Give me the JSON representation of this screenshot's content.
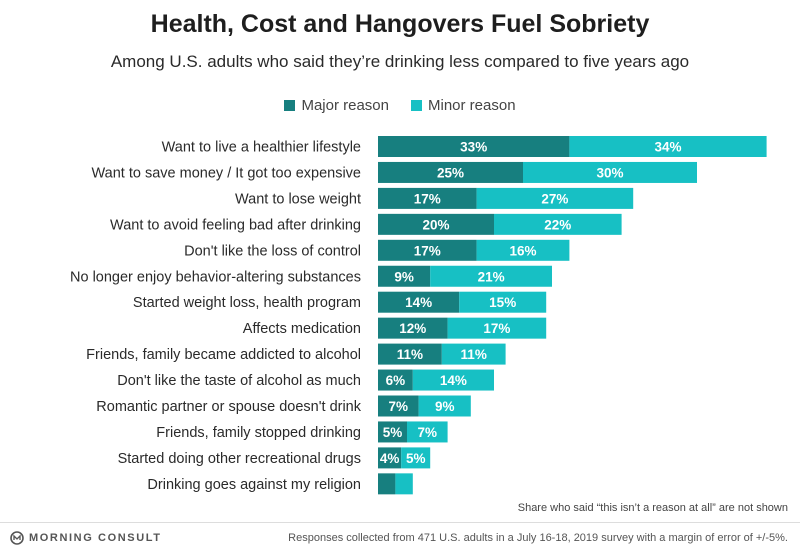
{
  "chart_data": {
    "type": "bar",
    "orientation": "horizontal",
    "stacked": true,
    "title": "Health, Cost and Hangovers Fuel Sobriety",
    "subtitle": "Among U.S. adults who said they’re drinking less compared to five years ago",
    "categories": [
      "Want to live a healthier lifestyle",
      "Want to save money / It got too expensive",
      "Want to lose weight",
      "Want to avoid feeling bad after drinking",
      "Don't like the loss of control",
      "No longer enjoy behavior-altering substances",
      "Started weight loss, health program",
      "Affects medication",
      "Friends, family became addicted to alcohol",
      "Don't like the taste of alcohol as much",
      "Romantic partner or spouse doesn't drink",
      "Friends, family stopped drinking",
      "Started doing other recreational drugs",
      "Drinking goes against my religion"
    ],
    "series": [
      {
        "name": "Major reason",
        "color": "#177f7f",
        "values": [
          33,
          25,
          17,
          20,
          17,
          9,
          14,
          12,
          11,
          6,
          7,
          5,
          4,
          3
        ]
      },
      {
        "name": "Minor reason",
        "color": "#17c0c4",
        "values": [
          34,
          30,
          27,
          22,
          16,
          21,
          15,
          17,
          11,
          14,
          9,
          7,
          5,
          3
        ]
      }
    ],
    "data_labels": [
      [
        "33%",
        "34%"
      ],
      [
        "25%",
        "30%"
      ],
      [
        "17%",
        "27%"
      ],
      [
        "20%",
        "22%"
      ],
      [
        "17%",
        "16%"
      ],
      [
        "9%",
        "21%"
      ],
      [
        "14%",
        "15%"
      ],
      [
        "12%",
        "17%"
      ],
      [
        "11%",
        "11%"
      ],
      [
        "6%",
        "14%"
      ],
      [
        "7%",
        "9%"
      ],
      [
        "5%",
        "7%"
      ],
      [
        "4%",
        "5%"
      ],
      [
        "",
        ""
      ]
    ],
    "xlim": [
      0,
      70
    ],
    "grid": false,
    "legend": "top-center"
  },
  "legend": {
    "major": "Major reason",
    "minor": "Minor reason"
  },
  "footnote": "Share who said “this isn’t a reason at all” are not shown",
  "brand": "MORNING CONSULT",
  "source": "Responses collected from 471 U.S. adults in a July 16-18, 2019 survey with a margin of error of +/-5%."
}
